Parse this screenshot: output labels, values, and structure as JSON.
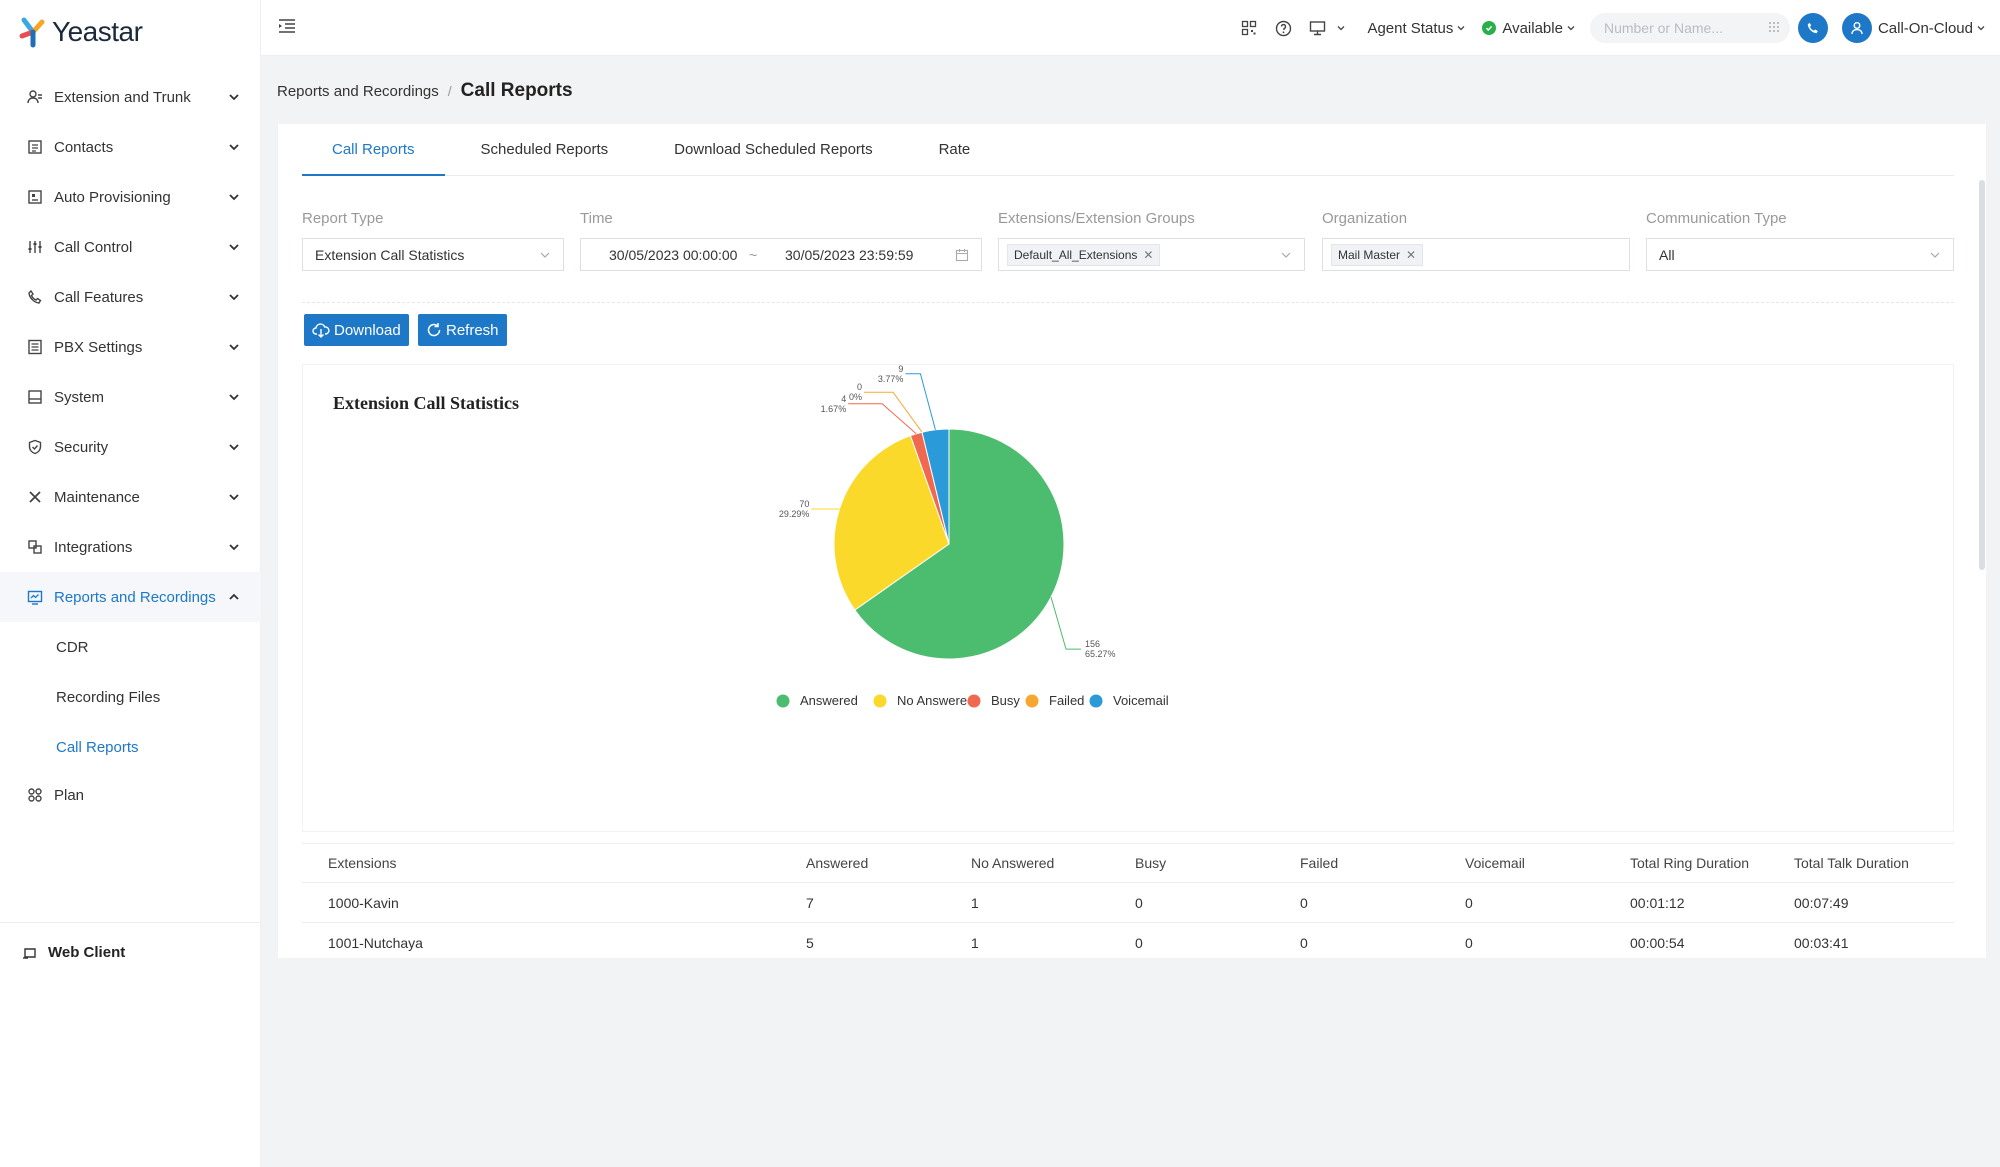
{
  "brand": {
    "name": "Yeastar"
  },
  "sidebar": {
    "items": [
      {
        "label": "Extension and Trunk",
        "icon": "users-icon"
      },
      {
        "label": "Contacts",
        "icon": "contacts-icon"
      },
      {
        "label": "Auto Provisioning",
        "icon": "provisioning-icon"
      },
      {
        "label": "Call Control",
        "icon": "sliders-icon"
      },
      {
        "label": "Call Features",
        "icon": "phone-icon"
      },
      {
        "label": "PBX Settings",
        "icon": "settings-list-icon"
      },
      {
        "label": "System",
        "icon": "system-icon"
      },
      {
        "label": "Security",
        "icon": "shield-icon"
      },
      {
        "label": "Maintenance",
        "icon": "tools-icon"
      },
      {
        "label": "Integrations",
        "icon": "integrations-icon"
      },
      {
        "label": "Reports and Recordings",
        "icon": "reports-icon"
      }
    ],
    "subitems": [
      "CDR",
      "Recording Files",
      "Call Reports"
    ],
    "plan": "Plan",
    "web_client": "Web Client"
  },
  "topbar": {
    "agent_status": "Agent Status",
    "availability": "Available",
    "dial_placeholder": "Number or Name...",
    "user": "Call-On-Cloud"
  },
  "breadcrumb": {
    "parent": "Reports and Recordings",
    "separator": "/",
    "current": "Call Reports"
  },
  "tabs": [
    "Call Reports",
    "Scheduled Reports",
    "Download Scheduled Reports",
    "Rate"
  ],
  "filters": {
    "report_type": {
      "label": "Report Type",
      "value": "Extension Call Statistics"
    },
    "time": {
      "label": "Time",
      "start": "30/05/2023 00:00:00",
      "sep": "~",
      "end": "30/05/2023 23:59:59"
    },
    "extensions": {
      "label": "Extensions/Extension Groups",
      "tag": "Default_All_Extensions"
    },
    "organization": {
      "label": "Organization",
      "tag": "Mail Master"
    },
    "communication": {
      "label": "Communication Type",
      "value": "All"
    }
  },
  "buttons": {
    "download": "Download",
    "refresh": "Refresh"
  },
  "chart_data": {
    "type": "pie",
    "title": "Extension Call Statistics",
    "slices": [
      {
        "name": "Answered",
        "value": 156,
        "percent": "65.27%",
        "color": "#4cbc6e"
      },
      {
        "name": "No Answered",
        "value": 70,
        "percent": "29.29%",
        "color": "#fbd92a"
      },
      {
        "name": "Busy",
        "value": 4,
        "percent": "1.67%",
        "color": "#f0684f"
      },
      {
        "name": "Failed",
        "value": 0,
        "percent": "0%",
        "color": "#f7a731"
      },
      {
        "name": "Voicemail",
        "value": 9,
        "percent": "3.77%",
        "color": "#2b9ad8"
      }
    ],
    "legend_position": "bottom-center"
  },
  "table": {
    "headers": [
      "Extensions",
      "Answered",
      "No Answered",
      "Busy",
      "Failed",
      "Voicemail",
      "Total Ring Duration",
      "Total Talk Duration"
    ],
    "rows": [
      [
        "1000-Kavin",
        "7",
        "1",
        "0",
        "0",
        "0",
        "00:01:12",
        "00:07:49"
      ],
      [
        "1001-Nutchaya",
        "5",
        "1",
        "0",
        "0",
        "0",
        "00:00:54",
        "00:03:41"
      ]
    ]
  }
}
